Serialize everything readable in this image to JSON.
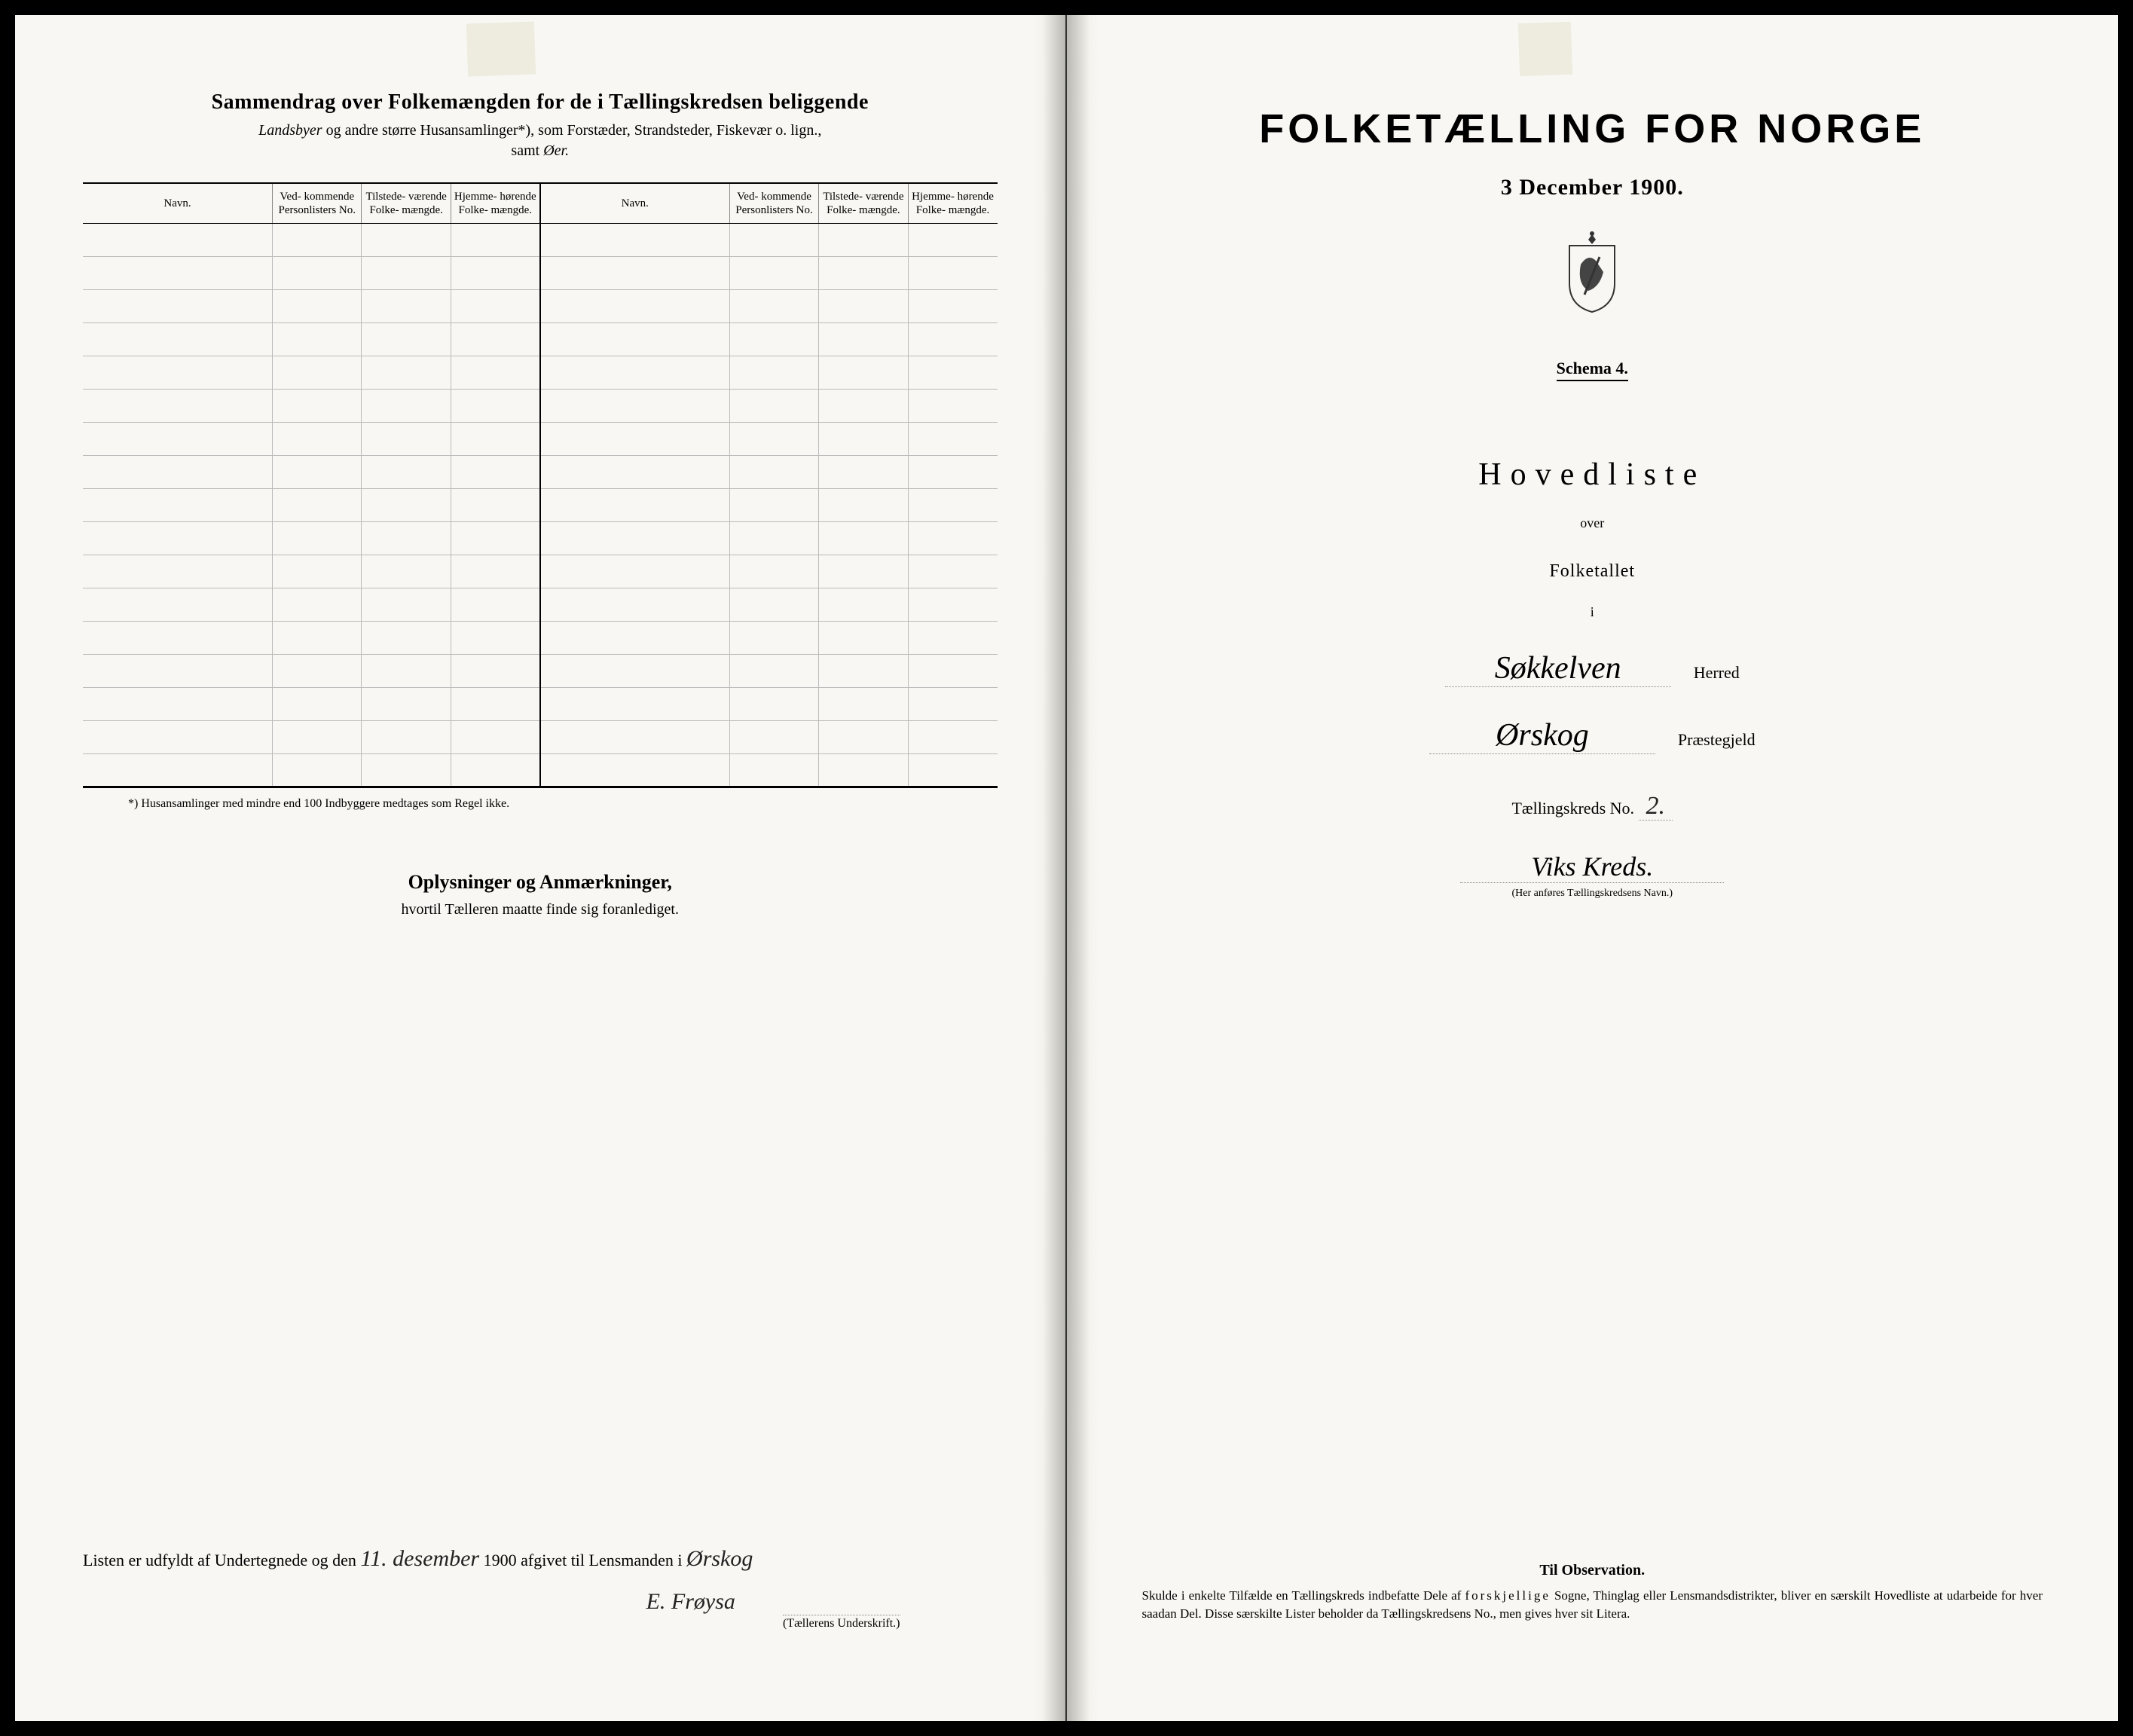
{
  "colors": {
    "paper": "#f8f7f3",
    "ink": "#000000",
    "background": "#000000"
  },
  "leftPage": {
    "title": "Sammendrag over Folkemængden for de i Tællingskredsen beliggende",
    "subtitle_italic": "Landsbyer",
    "subtitle_rest": " og andre større Husansamlinger*), som Forstæder, Strandsteder, Fiskevær o. lign.,",
    "subtitle_line2": "samt Øer.",
    "table": {
      "headers": {
        "navn": "Navn.",
        "col1": "Ved-\nkommende\nPersonlisters\nNo.",
        "col2": "Tilstede-\nværende\nFolke-\nmængde.",
        "col3": "Hjemme-\nhørende\nFolke-\nmængde."
      },
      "rows_count": 17
    },
    "footnote": "*) Husansamlinger med mindre end 100 Indbyggere medtages som Regel ikke.",
    "oplysninger_title": "Oplysninger og Anmærkninger,",
    "oplysninger_sub": "hvortil Tælleren maatte finde sig foranlediget.",
    "signature": {
      "line_prefix": "Listen er udfyldt af Undertegnede og den",
      "date_hand": "11. desember",
      "year": "1900",
      "line_mid": " afgivet til Lensmanden i",
      "place_hand": "Ørskog",
      "name_hand": "E. Frøysa",
      "name_label": "(Tællerens Underskrift.)"
    }
  },
  "rightPage": {
    "main_title": "FOLKETÆLLING FOR NORGE",
    "date": "3 December 1900.",
    "schema": "Schema 4.",
    "hovedliste": "Hovedliste",
    "over": "over",
    "folketallet": "Folketallet",
    "i": "i",
    "herred_hand": "Søkkelven",
    "herred_label": "Herred",
    "praeste_hand": "Ørskog",
    "praeste_label": "Præstegjeld",
    "kreds_prefix": "Tællingskreds No.",
    "kreds_no": "2.",
    "kreds_name": "Viks Kreds.",
    "kreds_note": "(Her anføres Tællingskredsens Navn.)",
    "obs_title": "Til Observation.",
    "obs_text_1": "Skulde i enkelte Tilfælde en Tællingskreds indbefatte Dele af ",
    "obs_spaced": "forskjellige",
    "obs_text_2": " Sogne, Thinglag eller Lensmandsdistrikter, bliver en særskilt Hovedliste at udarbeide for hver saadan Del. Disse særskilte Lister beholder da Tællingskredsens No., men gives hver sit Litera."
  }
}
